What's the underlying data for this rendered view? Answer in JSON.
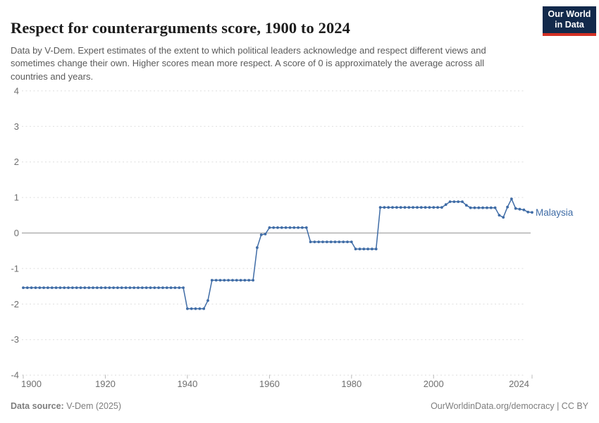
{
  "header": {
    "title": "Respect for counterarguments score, 1900 to 2024",
    "subtitle": "Data by V-Dem. Expert estimates of the extent to which political leaders acknowledge and respect different views and sometimes change their own. Higher scores mean more respect. A score of 0 is approximately the average across all countries and years.",
    "logo_line1": "Our World",
    "logo_line2": "in Data",
    "logo_bg_color": "#12294B",
    "logo_accent_color": "#D33024"
  },
  "footer": {
    "source_label": "Data source:",
    "source_value": " V-Dem (2025)",
    "right_text": "OurWorldinData.org/democracy | CC BY"
  },
  "chart_data": {
    "type": "line",
    "title": "Respect for counterarguments score, 1900 to 2024",
    "xlabel": "",
    "ylabel": "",
    "xlim": [
      1900,
      2024
    ],
    "ylim": [
      -4,
      4
    ],
    "x_ticks": [
      1900,
      1920,
      1940,
      1960,
      1980,
      2000,
      2024
    ],
    "y_ticks": [
      4,
      3,
      2,
      1,
      0,
      -1,
      -2,
      -3,
      -4
    ],
    "grid": "horizontal dashed gridlines, solid zero line",
    "legend_position": "label at end of line",
    "colors": {
      "grid": "#DEDEDE",
      "zero_line": "#A5A5A5",
      "tick_label": "#6F6F6F",
      "tick_mark": "#BBBBBB"
    },
    "series": [
      {
        "name": "Malaysia",
        "color": "#3F6CA6",
        "start_year": 1900,
        "values": [
          -1.54,
          -1.54,
          -1.54,
          -1.54,
          -1.54,
          -1.54,
          -1.54,
          -1.54,
          -1.54,
          -1.54,
          -1.54,
          -1.54,
          -1.54,
          -1.54,
          -1.54,
          -1.54,
          -1.54,
          -1.54,
          -1.54,
          -1.54,
          -1.54,
          -1.54,
          -1.54,
          -1.54,
          -1.54,
          -1.54,
          -1.54,
          -1.54,
          -1.54,
          -1.54,
          -1.54,
          -1.54,
          -1.54,
          -1.54,
          -1.54,
          -1.54,
          -1.54,
          -1.54,
          -1.54,
          -1.54,
          -2.13,
          -2.13,
          -2.13,
          -2.13,
          -2.13,
          -1.9,
          -1.33,
          -1.33,
          -1.33,
          -1.33,
          -1.33,
          -1.33,
          -1.33,
          -1.33,
          -1.33,
          -1.33,
          -1.33,
          -0.41,
          -0.05,
          -0.03,
          0.15,
          0.15,
          0.15,
          0.15,
          0.15,
          0.15,
          0.15,
          0.15,
          0.15,
          0.15,
          -0.25,
          -0.25,
          -0.25,
          -0.25,
          -0.25,
          -0.25,
          -0.25,
          -0.25,
          -0.25,
          -0.25,
          -0.25,
          -0.45,
          -0.45,
          -0.45,
          -0.45,
          -0.45,
          -0.45,
          0.72,
          0.72,
          0.72,
          0.72,
          0.72,
          0.72,
          0.72,
          0.72,
          0.72,
          0.72,
          0.72,
          0.72,
          0.72,
          0.72,
          0.72,
          0.72,
          0.8,
          0.88,
          0.88,
          0.88,
          0.88,
          0.78,
          0.71,
          0.71,
          0.71,
          0.71,
          0.71,
          0.71,
          0.71,
          0.5,
          0.44,
          0.73,
          0.96,
          0.69,
          0.67,
          0.65,
          0.59,
          0.58
        ]
      }
    ]
  }
}
